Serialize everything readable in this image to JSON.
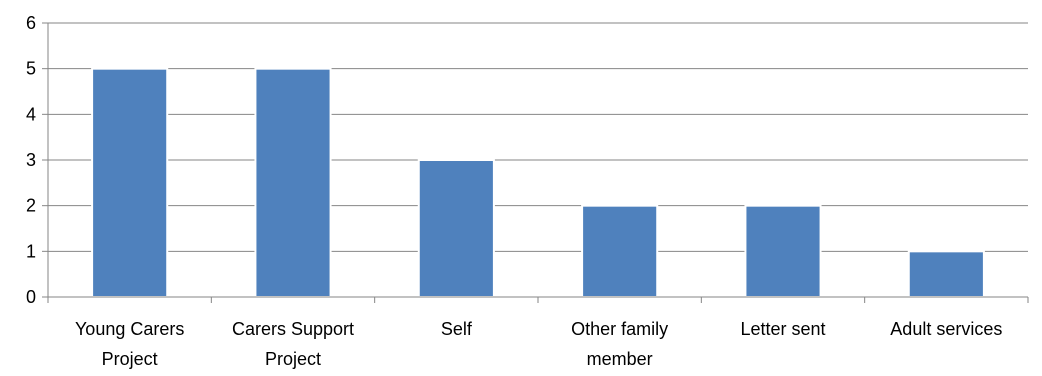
{
  "chart_data": {
    "type": "bar",
    "categories": [
      [
        "Young Carers",
        "Project"
      ],
      [
        "Carers Support",
        "Project"
      ],
      [
        "Self"
      ],
      [
        "Other family",
        "member"
      ],
      [
        "Letter sent"
      ],
      [
        "Adult services"
      ]
    ],
    "values": [
      5,
      5,
      3,
      2,
      2,
      1
    ],
    "ylim": [
      0,
      6
    ],
    "yticks": [
      "0",
      "1",
      "2",
      "3",
      "4",
      "5",
      "6"
    ],
    "grid": true,
    "legend": "none",
    "colors": {
      "bar": "#4F81BD",
      "bar_edge": "#FFFFFF",
      "grid": "#868686",
      "axis": "#868686"
    }
  }
}
